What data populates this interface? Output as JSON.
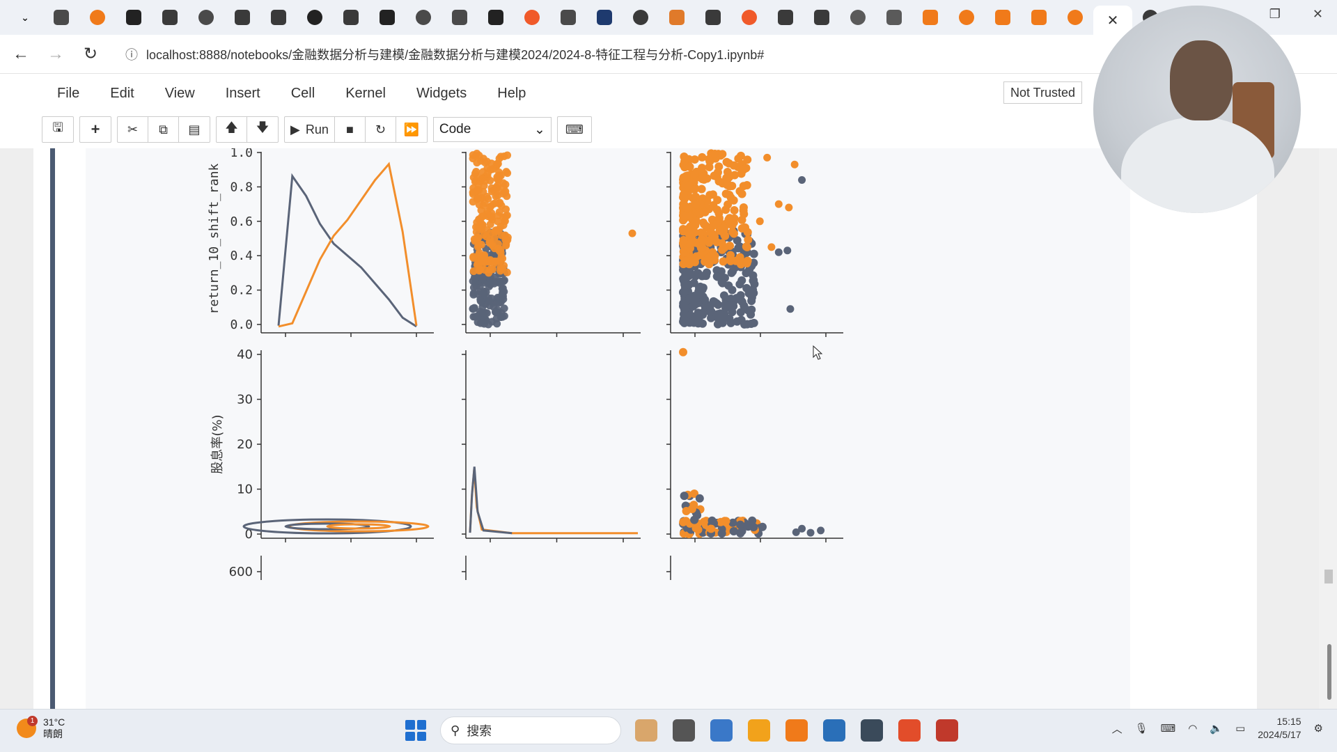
{
  "browser": {
    "tab_colors": [
      "#4a4a4a",
      "#f07a1a",
      "#222222",
      "#3a3a3a",
      "#4a4a4a",
      "#3a3a3a",
      "#3a3a3a",
      "#222222",
      "#3a3a3a",
      "#222222",
      "#4a4a4a",
      "#4a4a4a",
      "#222222",
      "#f05a2a",
      "#4a4a4a",
      "#1e3a6e",
      "#3a3a3a",
      "#e07a2a",
      "#3a3a3a",
      "#f05a2a",
      "#3a3a3a",
      "#3a3a3a",
      "#5a5a5a",
      "#5a5a5a",
      "#f07a1a",
      "#f07a1a",
      "#f07a1a",
      "#f07a1a",
      "#f07a1a"
    ],
    "active_tab_close": "✕",
    "window_controls": {
      "restore": "❐",
      "close": "✕"
    },
    "url": "localhost:8888/notebooks/金融数据分析与建模/金融数据分析与建模2024/2024-8-特征工程与分析-Copy1.ipynb#"
  },
  "jupyter": {
    "menu": [
      "File",
      "Edit",
      "View",
      "Insert",
      "Cell",
      "Kernel",
      "Widgets",
      "Help"
    ],
    "trust_label": "Not Trusted",
    "toolbar": {
      "save_icon": "save-icon",
      "add_icon": "plus-icon",
      "run_label": "Run",
      "cell_type": "Code"
    }
  },
  "chart_data": {
    "type": "scatter",
    "description_layout": "seaborn pairplot grid, partially visible (2 full rows, third row cut off)",
    "series": [
      {
        "name": "",
        "color": "#5a6478"
      },
      {
        "name": "",
        "color": "#f28e2b"
      }
    ],
    "row_labels": [
      "return_10_shift_rank",
      "股息率(%)"
    ],
    "row1_yticks": [
      "0.0",
      "0.2",
      "0.4",
      "0.6",
      "0.8",
      "1.0"
    ],
    "row2_yticks": [
      "0",
      "10",
      "20",
      "30",
      "40"
    ],
    "row3_ytick": "600",
    "row1_kde": {
      "y": [
        0.0,
        0.1,
        0.2,
        0.3,
        0.4,
        0.5,
        0.6,
        0.7,
        0.8,
        0.9,
        1.0
      ],
      "series_a_density": [
        0.05,
        0.6,
        0.8,
        0.95,
        1.0,
        1.05,
        1.25,
        1.45,
        1.85,
        2.0,
        2.05
      ],
      "series_b_density": [
        0.02,
        0.1,
        0.2,
        0.35,
        0.5,
        0.7,
        0.85,
        0.95,
        1.0,
        1.02,
        0.95
      ]
    },
    "row2_kde_peak": 15,
    "scatter_r1c3_outliers_a": [
      [
        0.82,
        0.84
      ],
      [
        0.72,
        0.43
      ],
      [
        0.66,
        0.42
      ],
      [
        0.74,
        0.09
      ]
    ],
    "scatter_r1c3_outliers_b": [
      [
        0.58,
        0.97
      ],
      [
        0.77,
        0.93
      ],
      [
        0.66,
        0.7
      ],
      [
        0.73,
        0.68
      ],
      [
        0.53,
        0.6
      ],
      [
        0.61,
        0.45
      ]
    ],
    "scatter_r1c2_outlier_b": [
      1.0,
      0.53
    ],
    "scatter_r2c3_outlier_b": [
      0.0,
      40.5
    ]
  },
  "taskbar": {
    "weather_badge": "1",
    "weather_temp": "31°C",
    "weather_desc": "晴朗",
    "search_placeholder": "搜索",
    "time": "15:15",
    "date": "2024/5/17",
    "app_colors": [
      "#d9a66b",
      "#555555",
      "#3a78c8",
      "#f2a21b",
      "#f07a1a",
      "#2a6fb8",
      "#3a4a5a",
      "#e24d2a",
      "#c0392b"
    ]
  }
}
